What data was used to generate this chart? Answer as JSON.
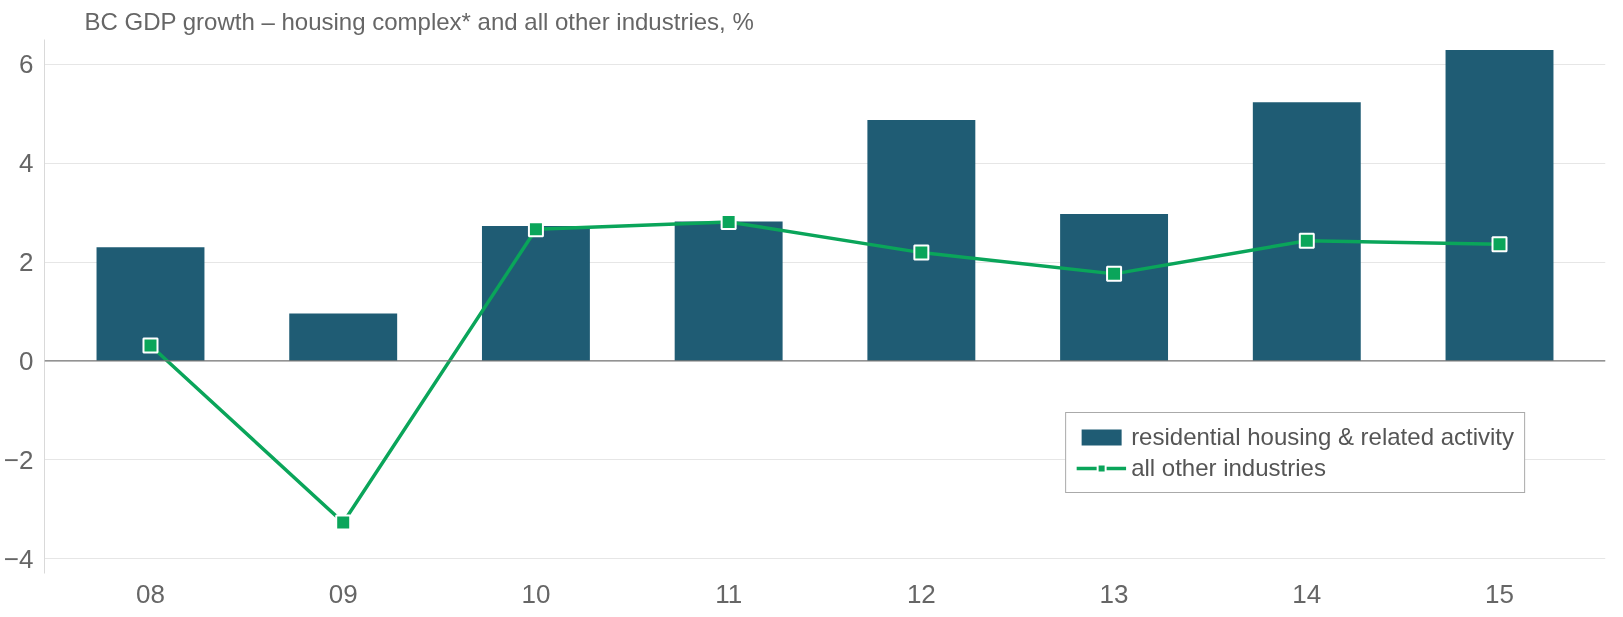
{
  "chart_data": {
    "type": "bar",
    "title": "BC GDP growth – housing complex* and all other industries, %",
    "categories": [
      "08",
      "09",
      "10",
      "11",
      "12",
      "13",
      "14",
      "15"
    ],
    "series": [
      {
        "name": "residential housing & related activity",
        "color": "#1f5c74",
        "values": [
          2.3,
          0.96,
          2.73,
          2.82,
          4.87,
          2.97,
          5.23,
          6.29
        ]
      },
      {
        "name": "all other industries",
        "type": "line",
        "color": "#0aa55a",
        "marker": "square",
        "values": [
          0.31,
          -3.27,
          2.66,
          2.81,
          2.19,
          1.76,
          2.43,
          2.36
        ]
      }
    ],
    "ylim": [
      -4.3,
      6.5
    ],
    "yticks": [
      -4,
      -2,
      0,
      2,
      4,
      6
    ],
    "grid": "y",
    "legend": "bottom right"
  }
}
